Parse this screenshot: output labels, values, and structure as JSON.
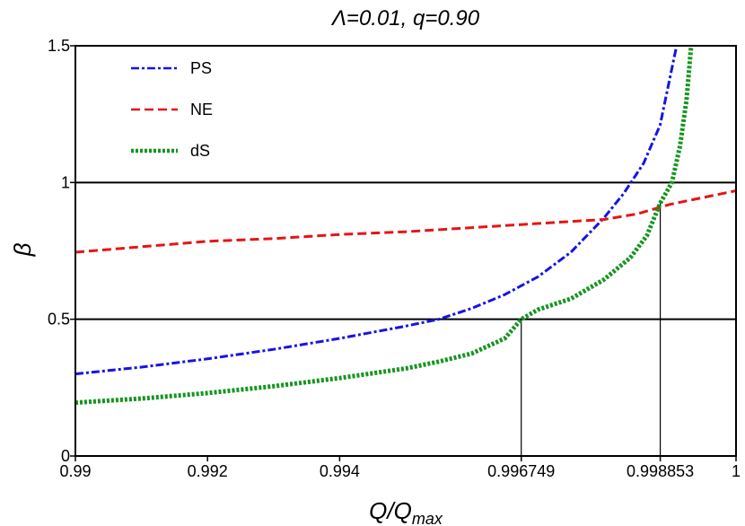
{
  "chart_data": {
    "type": "line",
    "title": "Λ=0.01, q=0.90",
    "xlabel": "Q/Q",
    "xlabel_sub": "max",
    "ylabel": "β",
    "xlim": [
      0.99,
      1.0
    ],
    "ylim": [
      0,
      1.5
    ],
    "x_ticks": [
      0.99,
      0.992,
      0.994,
      0.996749,
      0.998853,
      1.0
    ],
    "x_tick_labels": [
      "0.99",
      "0.992",
      "0.994",
      "0.996749",
      "0.998853",
      "1"
    ],
    "y_ticks": [
      0,
      0.5,
      1,
      1.5
    ],
    "y_tick_labels": [
      "0",
      "0.5",
      "1",
      "1.5"
    ],
    "reference_lines": {
      "horizontal": [
        0.5,
        1.0
      ],
      "vertical": [
        {
          "x": 0.996749,
          "y_top": 0.5
        },
        {
          "x": 0.998853,
          "y_top": 0.925
        }
      ]
    },
    "legend_position": "top-left",
    "series": [
      {
        "name": "PS",
        "color": "#1414e6",
        "style": "dashdot",
        "x": [
          0.99,
          0.991,
          0.992,
          0.993,
          0.994,
          0.995,
          0.9955,
          0.996,
          0.9965,
          0.997,
          0.9975,
          0.998,
          0.9983,
          0.9986,
          0.99885,
          0.9991
        ],
        "y": [
          0.3,
          0.325,
          0.355,
          0.39,
          0.43,
          0.475,
          0.5,
          0.54,
          0.59,
          0.655,
          0.745,
          0.87,
          0.96,
          1.07,
          1.21,
          1.5
        ]
      },
      {
        "name": "NE",
        "color": "#e61414",
        "style": "dashed",
        "x": [
          0.99,
          0.991,
          0.992,
          0.993,
          0.994,
          0.995,
          0.996,
          0.997,
          0.998,
          0.9985,
          0.999,
          0.9995,
          1.0
        ],
        "y": [
          0.745,
          0.765,
          0.785,
          0.795,
          0.81,
          0.82,
          0.835,
          0.85,
          0.865,
          0.885,
          0.92,
          0.945,
          0.97
        ]
      },
      {
        "name": "dS",
        "color": "#14961e",
        "style": "dotted",
        "x": [
          0.99,
          0.991,
          0.992,
          0.993,
          0.994,
          0.995,
          0.9955,
          0.996,
          0.9965,
          0.996749,
          0.997,
          0.9975,
          0.998,
          0.9984,
          0.99865,
          0.998853,
          0.99903,
          0.99915,
          0.99925,
          0.99932
        ],
        "y": [
          0.195,
          0.21,
          0.23,
          0.255,
          0.285,
          0.32,
          0.345,
          0.375,
          0.43,
          0.5,
          0.535,
          0.575,
          0.645,
          0.725,
          0.805,
          0.925,
          1.0,
          1.13,
          1.3,
          1.5
        ]
      }
    ]
  }
}
